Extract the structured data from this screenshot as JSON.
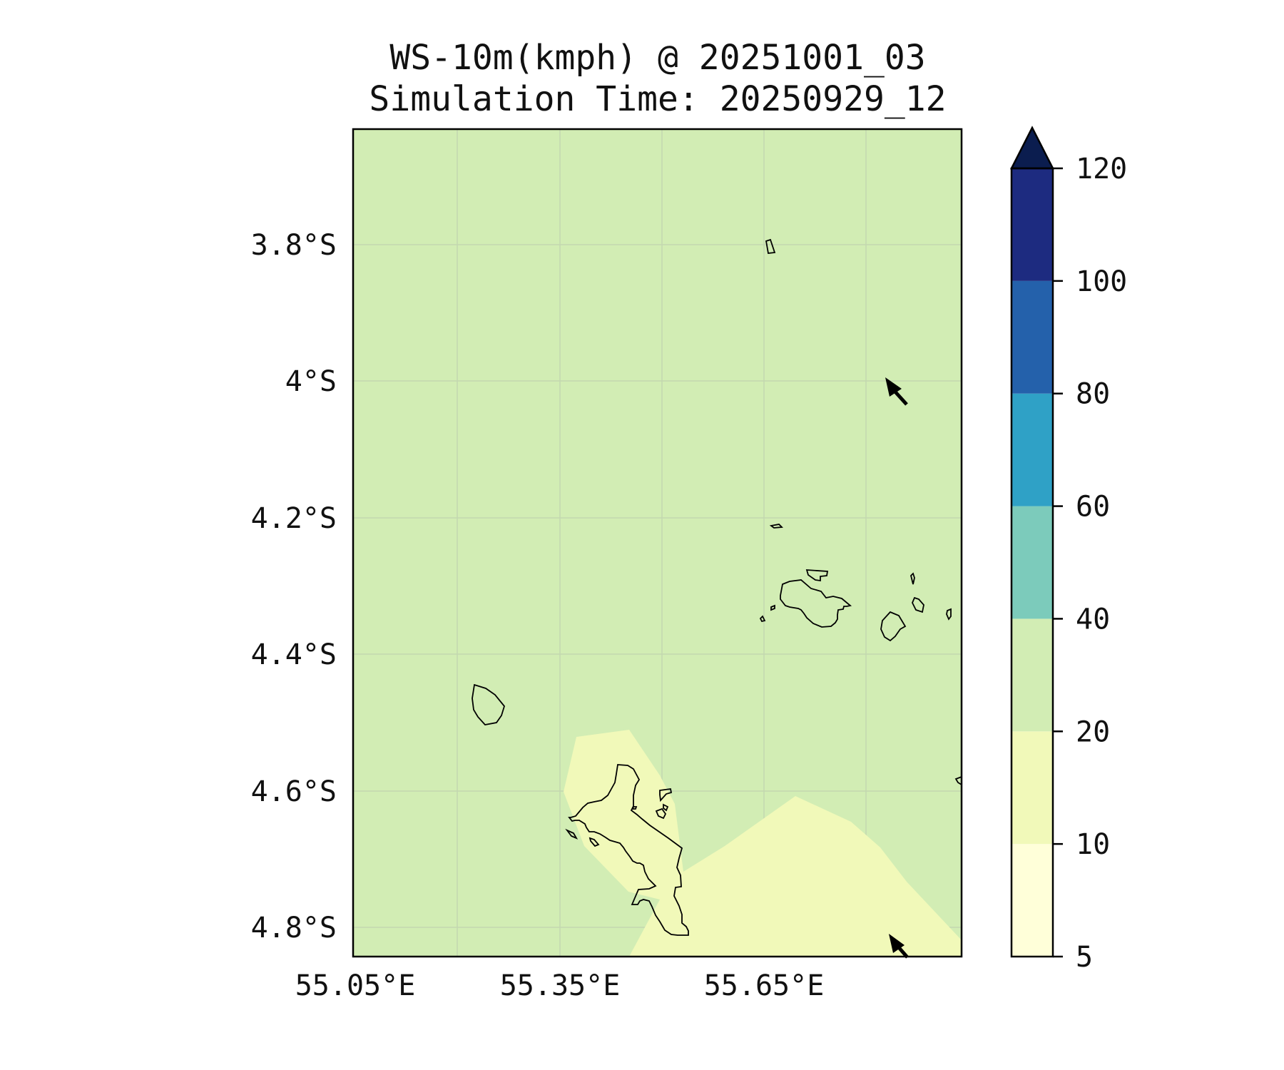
{
  "title": {
    "line1": "WS-10m(kmph) @ 20251001_03",
    "line2": "Simulation Time: 20250929_12"
  },
  "map": {
    "lon_ticks": [
      "55.05°E",
      "55.35°E",
      "55.65°E"
    ],
    "lat_ticks": [
      "3.8°S",
      "4°S",
      "4.2°S",
      "4.4°S",
      "4.6°S",
      "4.8°S"
    ],
    "field_colors": {
      "background_20_40": "#d2edb4",
      "region_10_20": "#f1f9b9"
    },
    "coastline_color": "#000000",
    "wind_arrow_color": "#000000"
  },
  "colorbar": {
    "levels": [
      {
        "label": "5",
        "color": "#ffffd9"
      },
      {
        "label": "10",
        "color": "#f1f9b9"
      },
      {
        "label": "20",
        "color": "#d2edb4"
      },
      {
        "label": "40",
        "color": "#7ccbbb"
      },
      {
        "label": "60",
        "color": "#2fa1c6"
      },
      {
        "label": "80",
        "color": "#2461ab"
      },
      {
        "label": "100",
        "color": "#1d2b80"
      },
      {
        "label": "120",
        "color": "#0b1d4f"
      }
    ],
    "extend": "max"
  }
}
